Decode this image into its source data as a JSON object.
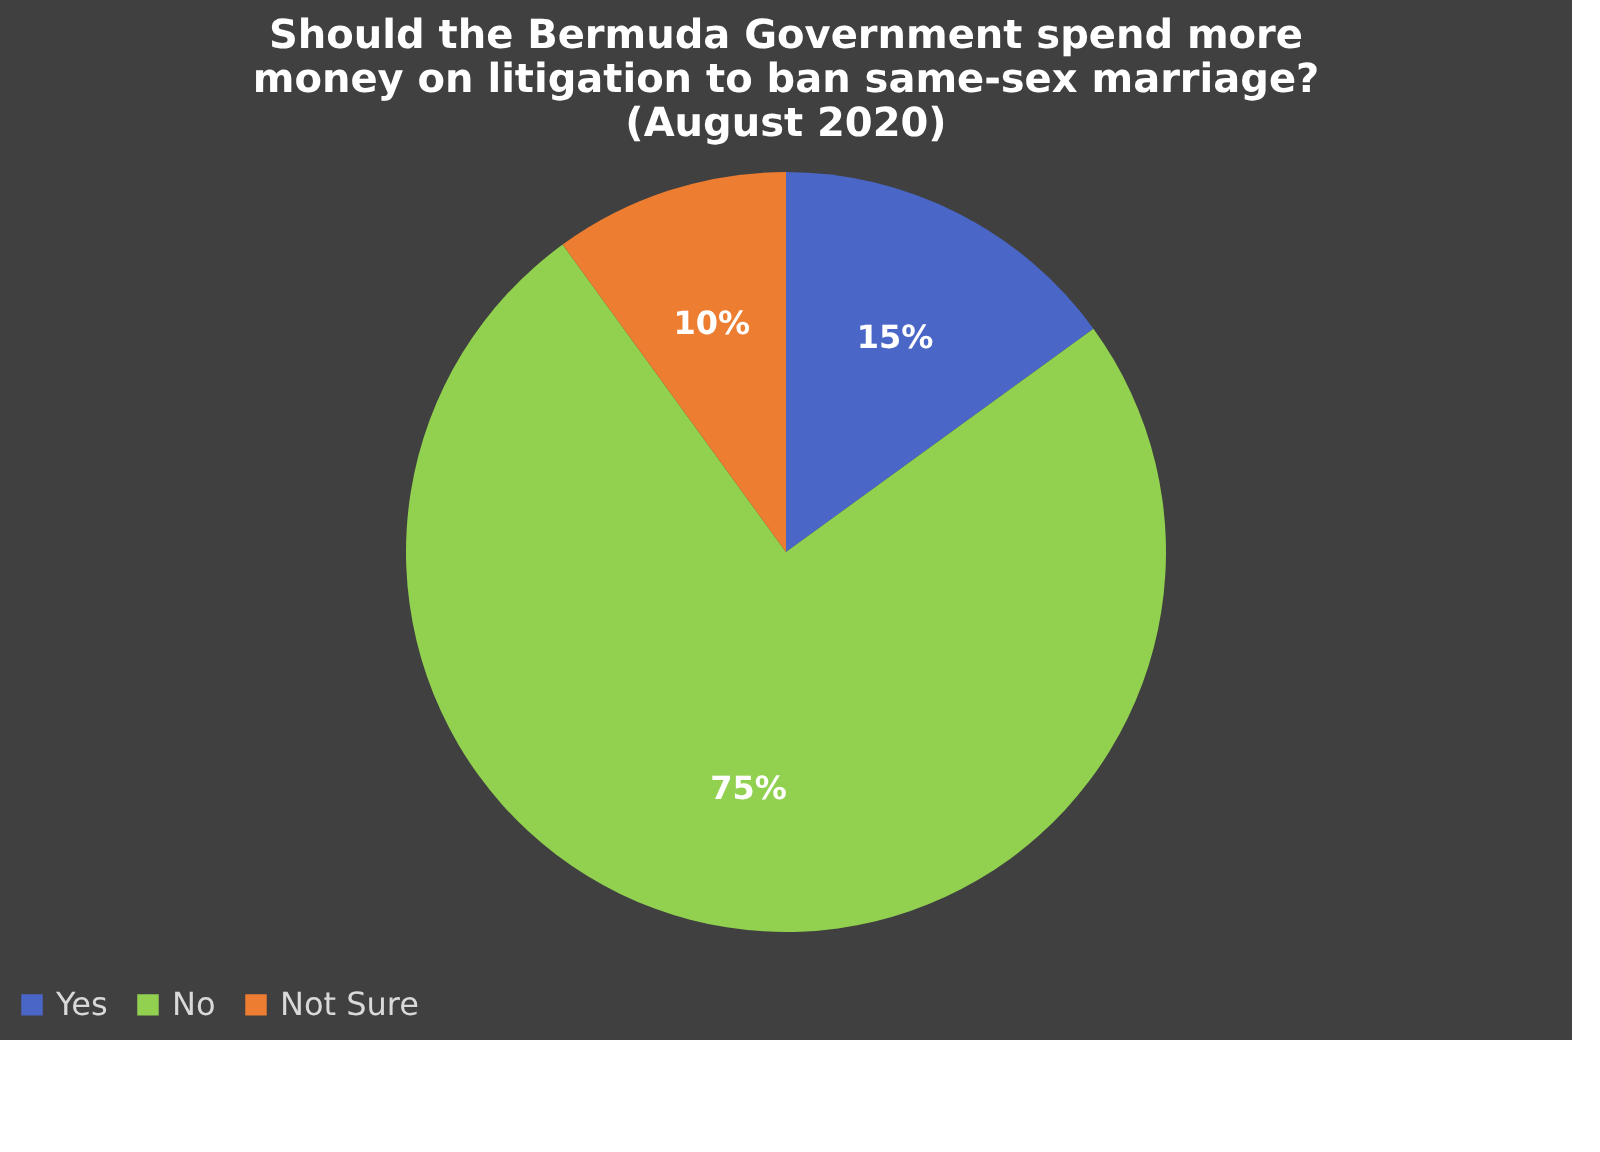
{
  "chart_data": {
    "type": "pie",
    "title": "Should the Bermuda Government spend more\nmoney on litigation to ban same-sex marriage?\n(August 2020)",
    "categories": [
      "Yes",
      "No",
      "Not Sure"
    ],
    "values": [
      15,
      75,
      10
    ],
    "colors": [
      "#4a66c6",
      "#92d050",
      "#ed7d31"
    ],
    "value_labels": [
      "15%",
      "75%",
      "10%"
    ],
    "legend": "bottom"
  }
}
